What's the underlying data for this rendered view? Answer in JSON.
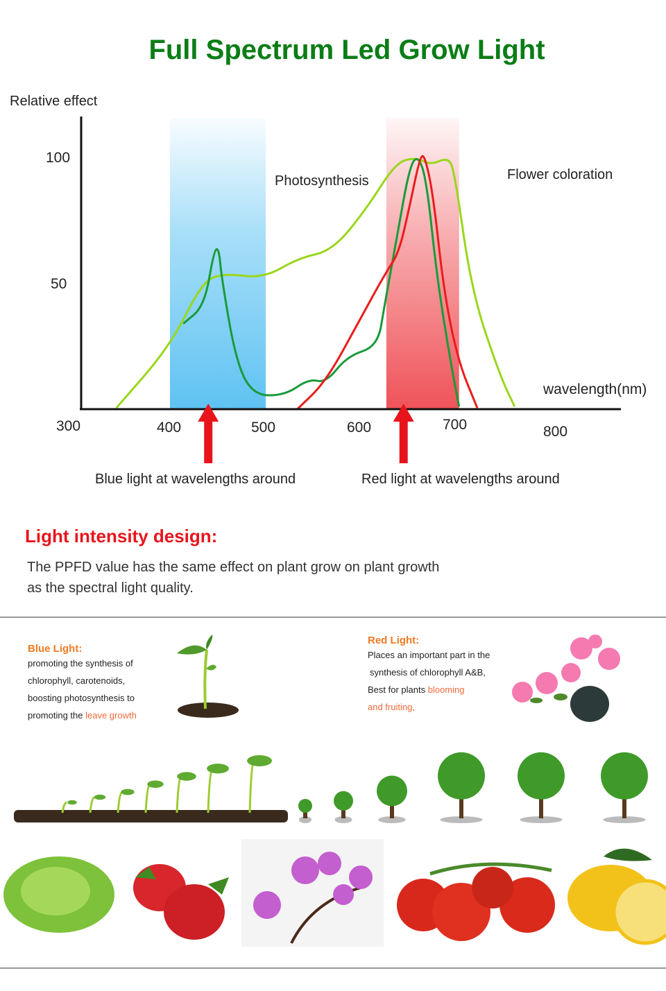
{
  "header": {
    "title": "Full Spectrum Led Grow Light"
  },
  "chart_data": {
    "type": "line",
    "title": "",
    "ylabel": "Relative effect",
    "xlabel": "wavelength(nm)",
    "xlim": [
      300,
      830
    ],
    "ylim": [
      0,
      110
    ],
    "x_ticks": [
      300,
      400,
      500,
      600,
      700,
      800
    ],
    "x_tick_labels": [
      "300",
      "400",
      "500",
      "600",
      "700",
      "800"
    ],
    "y_ticks": [
      50,
      100
    ],
    "y_tick_labels": [
      "50",
      "100"
    ],
    "grid": false,
    "bands": [
      {
        "range": [
          400,
          500
        ],
        "color": "#6cc8f4"
      },
      {
        "range": [
          626,
          702
        ],
        "color": "#ee4a50"
      }
    ],
    "annotations": {
      "photosynthesis": "Photosynthesis",
      "flower_coloration": "Flower coloration",
      "blue_arrow_label": "Blue light at wavelengths around",
      "red_arrow_label": "Red light at wavelengths around"
    },
    "arrows": [
      {
        "x": 440,
        "color": "#e8141c"
      },
      {
        "x": 644,
        "color": "#e8141c"
      }
    ],
    "series": [
      {
        "color": "#9ad61c",
        "points": [
          [
            344,
            0.5
          ],
          [
            400,
            25
          ],
          [
            433,
            50
          ],
          [
            454,
            54
          ],
          [
            498,
            52
          ],
          [
            534,
            60
          ],
          [
            570,
            63
          ],
          [
            606,
            80
          ],
          [
            636,
            98
          ],
          [
            657,
            100
          ],
          [
            672,
            97
          ],
          [
            690,
            100
          ],
          [
            697,
            95
          ],
          [
            715,
            47
          ],
          [
            744,
            14
          ],
          [
            760,
            1
          ]
        ]
      },
      {
        "color": "#1a9a3a",
        "points": [
          [
            414,
            34
          ],
          [
            436,
            41
          ],
          [
            446,
            63
          ],
          [
            451,
            64
          ],
          [
            454,
            52
          ],
          [
            469,
            19
          ],
          [
            487,
            5.5
          ],
          [
            520,
            5.5
          ],
          [
            545,
            12
          ],
          [
            563,
            10.5
          ],
          [
            585,
            21
          ],
          [
            617,
            25
          ],
          [
            624,
            41
          ],
          [
            636,
            66
          ],
          [
            650,
            96
          ],
          [
            659,
            101
          ],
          [
            668,
            91
          ],
          [
            679,
            52
          ],
          [
            693,
            19
          ],
          [
            702,
            1
          ]
        ]
      },
      {
        "color": "#ea1c1c",
        "points": [
          [
            533,
            0
          ],
          [
            563,
            11
          ],
          [
            599,
            36
          ],
          [
            625,
            54
          ],
          [
            639,
            62
          ],
          [
            650,
            80
          ],
          [
            661,
            100
          ],
          [
            666,
            101
          ],
          [
            675,
            85
          ],
          [
            686,
            47
          ],
          [
            701,
            19
          ],
          [
            721,
            0.5
          ]
        ]
      }
    ]
  },
  "intensity": {
    "title": "Light intensity design:",
    "line1": "The PPFD value has the same effect on plant grow on plant growth",
    "line2": "as the spectral light quality."
  },
  "blue_card": {
    "title": "Blue Light:",
    "lines": [
      "promoting the synthesis of",
      "chlorophyll, carotenoids,",
      "boosting photosynthesis to",
      "promoting the "
    ],
    "highlight": "leave growth"
  },
  "red_card": {
    "title": "Red Light:",
    "lines": [
      "Places an important part in the",
      "synthesis of chlorophyll A&B,",
      "Best for plants "
    ],
    "highlight1": "blooming",
    "highlight2": "and fruiting,"
  }
}
